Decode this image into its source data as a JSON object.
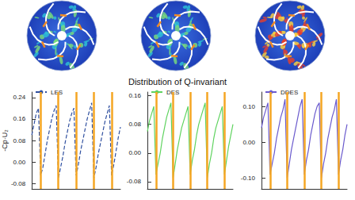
{
  "title": "Distribution of Q-invariant",
  "chart_data": [
    {
      "type": "line",
      "y_label": "-Cp·U₂",
      "legend": "upper left",
      "tick_labels": "y",
      "x": [
        0,
        1,
        2,
        3,
        4,
        5,
        6,
        7,
        8,
        9,
        10,
        11,
        12,
        13,
        14,
        15,
        16,
        17,
        18,
        19,
        20,
        21,
        22,
        23,
        24,
        25,
        26,
        27,
        28,
        29,
        30,
        31,
        32,
        33,
        34,
        35,
        36,
        37,
        38,
        39,
        40
      ],
      "xlim": [
        0,
        40
      ],
      "vlines": [
        4,
        12,
        20,
        28,
        36
      ],
      "ylim": [
        -0.1,
        0.26
      ],
      "yticks": [
        -0.08,
        {
          "value": 0,
          "label": "0.00"
        },
        0.08,
        0.16,
        0.24
      ],
      "series": [
        {
          "name": "LES",
          "color": "#2f4f9f",
          "line_style": "dashed",
          "values": [
            0.1,
            0.14,
            0.18,
            0.2,
            -0.05,
            -0.02,
            0.03,
            0.08,
            0.12,
            0.16,
            0.19,
            0.21,
            -0.06,
            -0.02,
            0.02,
            0.07,
            0.11,
            0.15,
            0.18,
            0.2,
            -0.05,
            -0.01,
            0.04,
            0.08,
            0.12,
            0.16,
            0.19,
            0.22,
            -0.06,
            -0.02,
            0.03,
            0.07,
            0.11,
            0.15,
            0.18,
            0.21,
            -0.05,
            -0.01,
            0.04,
            0.09,
            0.13
          ]
        }
      ]
    },
    {
      "type": "line",
      "legend": "upper left",
      "tick_labels": "y",
      "x": [
        0,
        1,
        2,
        3,
        4,
        5,
        6,
        7,
        8,
        9,
        10,
        11,
        12,
        13,
        14,
        15,
        16,
        17,
        18,
        19,
        20,
        21,
        22,
        23,
        24,
        25,
        26,
        27,
        28,
        29,
        30,
        31,
        32,
        33,
        34,
        35,
        36,
        37,
        38,
        39,
        40
      ],
      "xlim": [
        0,
        40
      ],
      "vlines": [
        4,
        12,
        20,
        28,
        36
      ],
      "ylim": [
        -0.1,
        0.17
      ],
      "yticks": [
        -0.08,
        {
          "value": 0,
          "label": "0.00"
        },
        0.08,
        0.16
      ],
      "series": [
        {
          "name": "DES",
          "color": "#5fd35f",
          "line_style": "solid",
          "values": [
            0.06,
            0.09,
            0.11,
            0.13,
            -0.06,
            -0.03,
            0.0,
            0.04,
            0.07,
            0.1,
            0.12,
            0.14,
            -0.07,
            -0.03,
            0.01,
            0.04,
            0.07,
            0.09,
            0.11,
            0.13,
            -0.06,
            -0.02,
            0.01,
            0.05,
            0.08,
            0.1,
            0.12,
            0.14,
            -0.07,
            -0.03,
            0.0,
            0.04,
            0.07,
            0.09,
            0.11,
            0.13,
            -0.06,
            -0.02,
            0.02,
            0.05,
            0.08
          ]
        }
      ]
    },
    {
      "type": "line",
      "legend": "upper left",
      "tick_labels": "y",
      "x": [
        0,
        1,
        2,
        3,
        4,
        5,
        6,
        7,
        8,
        9,
        10,
        11,
        12,
        13,
        14,
        15,
        16,
        17,
        18,
        19,
        20,
        21,
        22,
        23,
        24,
        25,
        26,
        27,
        28,
        29,
        30,
        31,
        32,
        33,
        34,
        35,
        36,
        37,
        38,
        39,
        40
      ],
      "xlim": [
        0,
        40
      ],
      "vlines": [
        4,
        12,
        20,
        28,
        36
      ],
      "ylim": [
        -0.13,
        0.14
      ],
      "yticks": [
        {
          "value": -0.1,
          "label": "-0.10"
        },
        {
          "value": 0,
          "label": "0.00"
        },
        {
          "value": 0.1,
          "label": "0.10"
        }
      ],
      "series": [
        {
          "name": "DDES",
          "color": "#6a5acd",
          "line_style": "solid",
          "values": [
            0.04,
            0.07,
            0.09,
            0.11,
            -0.09,
            -0.06,
            -0.03,
            0.01,
            0.04,
            0.07,
            0.09,
            0.12,
            -0.1,
            -0.06,
            -0.02,
            0.01,
            0.04,
            0.07,
            0.1,
            0.12,
            -0.09,
            -0.05,
            -0.02,
            0.02,
            0.05,
            0.08,
            0.1,
            0.11,
            -0.1,
            -0.06,
            -0.03,
            0.01,
            0.04,
            0.07,
            0.09,
            0.12,
            -0.09,
            -0.05,
            -0.02,
            0.02,
            0.05
          ]
        }
      ]
    }
  ]
}
